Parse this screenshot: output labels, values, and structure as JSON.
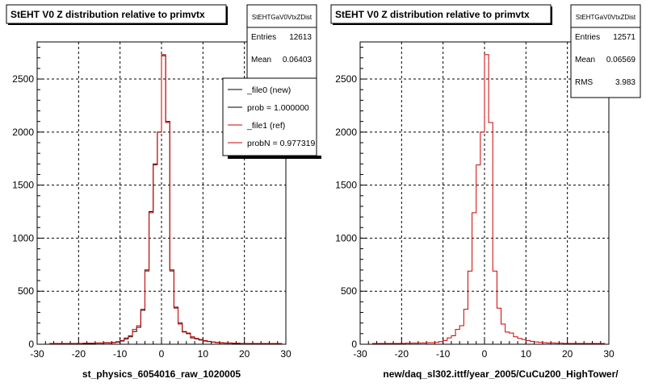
{
  "chart_data": [
    {
      "type": "line",
      "title": "StEHT V0 Z distribution relative to primvtx",
      "xlabel": "st_physics_6054016_raw_1020005",
      "ylabel": "",
      "xlim": [
        -30,
        30
      ],
      "ylim": [
        0,
        2850
      ],
      "x_ticks": [
        -30,
        -20,
        -10,
        0,
        10,
        20,
        30
      ],
      "y_ticks": [
        0,
        500,
        1000,
        1500,
        2000,
        2500
      ],
      "grid": true,
      "stats": {
        "name": "StEHTGaV0VtxZDist",
        "rows": [
          {
            "label": "Entries",
            "value": "12613"
          },
          {
            "label": "Mean",
            "value": "0.06403"
          }
        ]
      },
      "legend": {
        "position": "top-right",
        "entries": [
          {
            "label": "_file0 (new)",
            "color": "#000000"
          },
          {
            "label": "prob = 1.000000",
            "color": "#000000"
          },
          {
            "label": "_file1 (ref)",
            "color": "#cc0000"
          },
          {
            "label": "probN = 0.977319",
            "color": "#cc0000"
          }
        ]
      },
      "bin_edges": [
        -27,
        -26,
        -25,
        -24,
        -23,
        -22,
        -21,
        -20,
        -19,
        -18,
        -17,
        -16,
        -15,
        -14,
        -13,
        -12,
        -11,
        -10,
        -9,
        -8,
        -7,
        -6,
        -5,
        -4,
        -3,
        -2,
        -1,
        0,
        1,
        2,
        3,
        4,
        5,
        6,
        7,
        8,
        9,
        10,
        11,
        12,
        13,
        14,
        15,
        16,
        17,
        18,
        19,
        20,
        21,
        22,
        23,
        24,
        25,
        26,
        27,
        28,
        29
      ],
      "series": [
        {
          "name": "_file0 (new)",
          "color": "#000000",
          "values": [
            5,
            5,
            5,
            5,
            5,
            5,
            5,
            5,
            8,
            8,
            8,
            10,
            10,
            12,
            12,
            15,
            20,
            30,
            50,
            70,
            120,
            160,
            320,
            700,
            1250,
            1700,
            2000,
            2720,
            2100,
            700,
            350,
            200,
            120,
            100,
            60,
            50,
            40,
            30,
            25,
            20,
            15,
            12,
            10,
            10,
            8,
            8,
            5,
            5,
            5,
            5,
            5,
            5,
            5,
            5,
            5,
            5
          ]
        },
        {
          "name": "_file1 (ref)",
          "color": "#cc0000",
          "values": [
            8,
            8,
            8,
            8,
            8,
            8,
            8,
            8,
            10,
            10,
            10,
            12,
            12,
            15,
            15,
            18,
            25,
            35,
            60,
            80,
            140,
            175,
            330,
            690,
            1240,
            1690,
            2000,
            2730,
            2090,
            690,
            340,
            190,
            115,
            105,
            70,
            55,
            45,
            35,
            28,
            22,
            18,
            15,
            12,
            12,
            10,
            10,
            8,
            8,
            8,
            8,
            8,
            8,
            8,
            8,
            8,
            8
          ]
        }
      ]
    },
    {
      "type": "line",
      "title": "StEHT V0 Z distribution relative to primvtx",
      "xlabel": "new/daq_sl302.ittf/year_2005/CuCu200_HighTower/",
      "ylabel": "",
      "xlim": [
        -30,
        30
      ],
      "ylim": [
        0,
        2850
      ],
      "x_ticks": [
        -30,
        -20,
        -10,
        0,
        10,
        20,
        30
      ],
      "y_ticks": [
        0,
        500,
        1000,
        1500,
        2000,
        2500
      ],
      "grid": true,
      "stats": {
        "name": "StEHTGaV0VtxZDist",
        "rows": [
          {
            "label": "Entries",
            "value": "12571"
          },
          {
            "label": "Mean",
            "value": "0.06569"
          },
          {
            "label": "RMS",
            "value": "3.983"
          }
        ]
      },
      "bin_edges": [
        -27,
        -26,
        -25,
        -24,
        -23,
        -22,
        -21,
        -20,
        -19,
        -18,
        -17,
        -16,
        -15,
        -14,
        -13,
        -12,
        -11,
        -10,
        -9,
        -8,
        -7,
        -6,
        -5,
        -4,
        -3,
        -2,
        -1,
        0,
        1,
        2,
        3,
        4,
        5,
        6,
        7,
        8,
        9,
        10,
        11,
        12,
        13,
        14,
        15,
        16,
        17,
        18,
        19,
        20,
        21,
        22,
        23,
        24,
        25,
        26,
        27,
        28,
        29
      ],
      "series": [
        {
          "name": "",
          "color": "#cc0000",
          "values": [
            8,
            8,
            8,
            8,
            8,
            8,
            8,
            8,
            10,
            10,
            10,
            12,
            12,
            15,
            15,
            18,
            25,
            35,
            60,
            80,
            140,
            175,
            330,
            690,
            1240,
            1690,
            2000,
            2730,
            2090,
            690,
            340,
            190,
            115,
            105,
            70,
            55,
            45,
            35,
            28,
            22,
            18,
            15,
            12,
            12,
            10,
            10,
            8,
            8,
            8,
            8,
            8,
            8,
            8,
            8,
            8,
            8
          ]
        }
      ]
    }
  ]
}
